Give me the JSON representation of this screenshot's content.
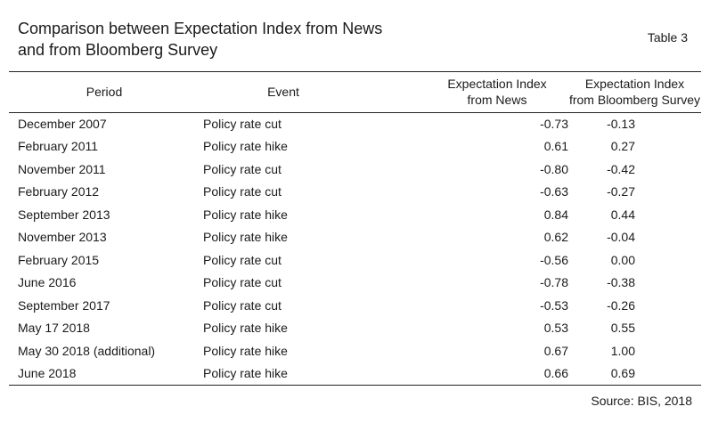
{
  "title": [
    "Comparison between Expectation Index from News",
    "and from Bloomberg Survey"
  ],
  "table_label": "Table 3",
  "headers": {
    "period": "Period",
    "event": "Event",
    "news": [
      "Expectation Index",
      "from News"
    ],
    "bloomberg": [
      "Expectation Index",
      "from Bloomberg Survey"
    ]
  },
  "rows": [
    {
      "period": "December 2007",
      "event": "Policy rate cut",
      "news": "-0.73",
      "bloomberg": "-0.13"
    },
    {
      "period": "February 2011",
      "event": "Policy rate hike",
      "news": "0.61",
      "bloomberg": "0.27"
    },
    {
      "period": "November 2011",
      "event": "Policy rate cut",
      "news": "-0.80",
      "bloomberg": "-0.42"
    },
    {
      "period": "February 2012",
      "event": "Policy rate cut",
      "news": "-0.63",
      "bloomberg": "-0.27"
    },
    {
      "period": "September 2013",
      "event": "Policy rate hike",
      "news": "0.84",
      "bloomberg": "0.44"
    },
    {
      "period": "November 2013",
      "event": "Policy rate hike",
      "news": "0.62",
      "bloomberg": "-0.04"
    },
    {
      "period": "February 2015",
      "event": "Policy rate cut",
      "news": "-0.56",
      "bloomberg": "0.00"
    },
    {
      "period": "June 2016",
      "event": "Policy rate cut",
      "news": "-0.78",
      "bloomberg": "-0.38"
    },
    {
      "period": "September 2017",
      "event": "Policy rate cut",
      "news": "-0.53",
      "bloomberg": "-0.26"
    },
    {
      "period": "May 17 2018",
      "event": "Policy rate hike",
      "news": "0.53",
      "bloomberg": "0.55"
    },
    {
      "period": "May 30 2018 (additional)",
      "event": "Policy rate hike",
      "news": "0.67",
      "bloomberg": "1.00"
    },
    {
      "period": "June 2018",
      "event": "Policy rate hike",
      "news": "0.66",
      "bloomberg": "0.69"
    }
  ],
  "source": "Source: BIS, 2018"
}
